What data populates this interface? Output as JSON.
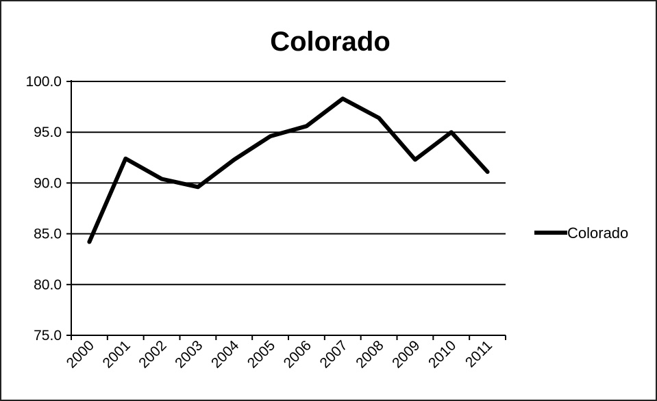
{
  "chart_data": {
    "type": "line",
    "title": "Colorado",
    "xlabel": "",
    "ylabel": "",
    "categories": [
      "2000",
      "2001",
      "2002",
      "2003",
      "2004",
      "2005",
      "2006",
      "2007",
      "2008",
      "2009",
      "2010",
      "2011"
    ],
    "series": [
      {
        "name": "Colorado",
        "color": "#000000",
        "values": [
          84.2,
          92.4,
          90.4,
          89.6,
          92.3,
          94.6,
          95.6,
          98.3,
          96.4,
          92.3,
          95.0,
          91.1
        ]
      }
    ],
    "ylim": [
      75.0,
      100.0
    ],
    "yticks": [
      "75.0",
      "80.0",
      "85.0",
      "90.0",
      "95.0",
      "100.0"
    ],
    "grid": true,
    "legend_position": "right"
  }
}
